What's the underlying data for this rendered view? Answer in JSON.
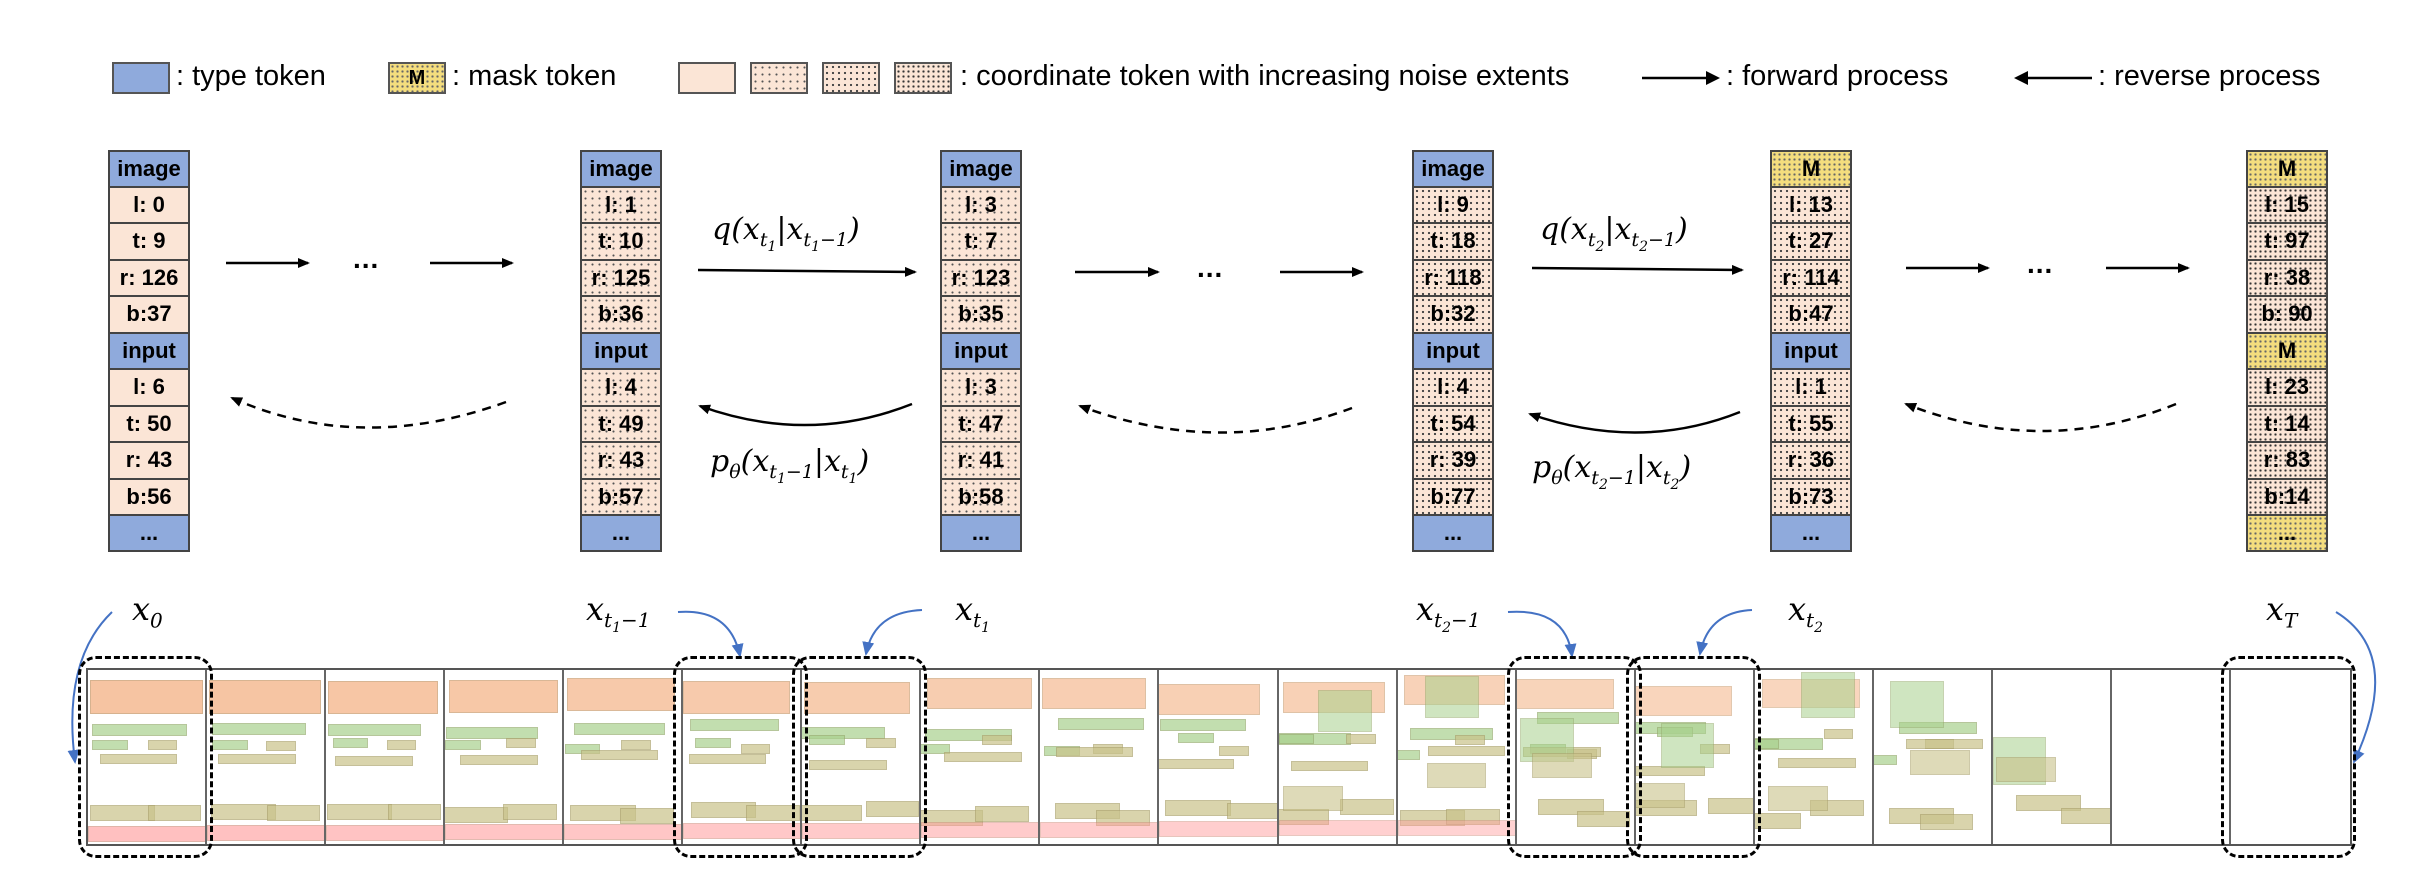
{
  "legend": {
    "type_token": ": type token",
    "mask_symbol": "M",
    "mask_token": ": mask token",
    "coord_token": ": coordinate token with increasing noise extents",
    "forward": ": forward process",
    "reverse": ": reverse process"
  },
  "columns": [
    {
      "tokens": [
        "image",
        "l: 0",
        "t: 9",
        "r: 126",
        "b:37",
        "input",
        "l: 6",
        "t: 50",
        "r: 43",
        "b:56",
        "..."
      ]
    },
    {
      "tokens": [
        "image",
        "l: 1",
        "t: 10",
        "r: 125",
        "b:36",
        "input",
        "l: 4",
        "t: 49",
        "r: 43",
        "b:57",
        "..."
      ]
    },
    {
      "tokens": [
        "image",
        "l: 3",
        "t: 7",
        "r: 123",
        "b:35",
        "input",
        "l: 3",
        "t: 47",
        "r: 41",
        "b:58",
        "..."
      ]
    },
    {
      "tokens": [
        "image",
        "l: 9",
        "t: 18",
        "r: 118",
        "b:32",
        "input",
        "l: 4",
        "t: 54",
        "r: 39",
        "b:77",
        "..."
      ]
    },
    {
      "tokens": [
        "M",
        "l: 13",
        "t: 27",
        "r: 114",
        "b:47",
        "input",
        "l: 1",
        "t: 55",
        "r: 36",
        "b:73",
        "..."
      ]
    },
    {
      "tokens": [
        "M",
        "l: 15",
        "t: 97",
        "r: 38",
        "b: 90",
        "M",
        "l: 23",
        "t: 14",
        "r: 83",
        "b:14",
        "..."
      ]
    }
  ],
  "ellipsis": "...",
  "labels": {
    "x0": {
      "base": "x",
      "sub": "0"
    },
    "xt1m1": {
      "base": "x",
      "sub": "t",
      "subsub": "1",
      "tail": "−1"
    },
    "xt1": {
      "base": "x",
      "sub": "t",
      "subsub": "1"
    },
    "xt2m1": {
      "base": "x",
      "sub": "t",
      "subsub": "2",
      "tail": "−1"
    },
    "xt2": {
      "base": "x",
      "sub": "t",
      "subsub": "2"
    },
    "xT": {
      "base": "x",
      "sub": "T"
    }
  },
  "equations": {
    "q1": "q(x_{t1} | x_{t1−1})",
    "p1": "pθ(x_{t1−1} | x_{t1})",
    "q2": "q(x_{t2} | x_{t2−1})",
    "p2": "pθ(x_{t2−1} | x_{t2})"
  },
  "colors": {
    "type_token": "#8faadc",
    "mask_token": "#f4dd7e",
    "coordinate_token": "#fbe5d6",
    "layout_orange": "#f4b183",
    "layout_green": "#a9d18e",
    "layout_olive": "#c9c28a",
    "layout_pink": "#ff9f9f",
    "curve_arrow": "#4472c4"
  },
  "layout_strip": {
    "frame_count": 19,
    "highlighted_frames": [
      0,
      5,
      6,
      12,
      13,
      18
    ]
  }
}
